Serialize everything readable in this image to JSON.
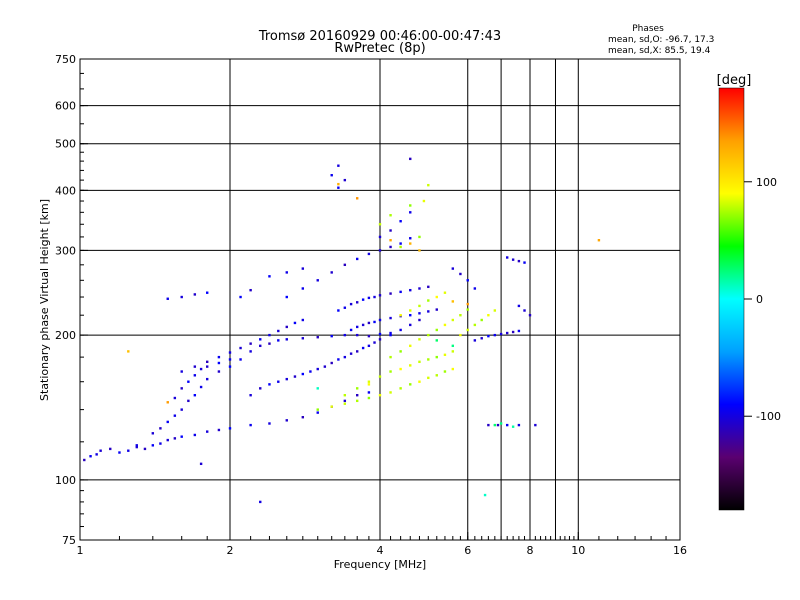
{
  "chart_data": {
    "type": "scatter",
    "title": "Tromsø 20160929 00:46:00-00:47:43",
    "subtitle": "RwPretec (8p)",
    "xlabel": "Frequency [MHz]",
    "ylabel": "Stationary phase Virtual Height [km]",
    "x_scale": "log",
    "y_scale": "log",
    "xlim": [
      1,
      16
    ],
    "ylim": [
      75,
      750
    ],
    "x_ticks": [
      1,
      2,
      4,
      6,
      8,
      10,
      16
    ],
    "y_ticks": [
      75,
      100,
      200,
      300,
      400,
      500,
      600,
      750
    ],
    "grid": true,
    "info": {
      "heading": "Phases",
      "line_o": "mean, sd,O: -96.7, 17.3",
      "line_x": "mean, sd,X:  85.5, 19.4"
    },
    "colorbar": {
      "label": "[deg]",
      "range": [
        -180,
        180
      ],
      "ticks": [
        100,
        0,
        -100
      ],
      "colors": [
        "#000000",
        "#5a0070",
        "#0000ff",
        "#00a0ff",
        "#00ffff",
        "#00ff00",
        "#ffff00",
        "#ffa000",
        "#ff0000"
      ]
    },
    "series": [
      {
        "phase": -100,
        "points": [
          [
            1.02,
            110
          ],
          [
            1.05,
            112
          ],
          [
            1.08,
            113
          ],
          [
            1.1,
            115
          ],
          [
            1.15,
            116
          ],
          [
            1.2,
            114
          ],
          [
            1.25,
            115
          ],
          [
            1.3,
            117
          ],
          [
            1.35,
            116
          ],
          [
            1.4,
            118
          ],
          [
            1.45,
            119
          ],
          [
            1.5,
            121
          ],
          [
            1.55,
            122
          ],
          [
            1.6,
            123
          ],
          [
            1.7,
            124
          ],
          [
            1.8,
            126
          ],
          [
            1.9,
            127
          ],
          [
            2.0,
            128
          ],
          [
            2.2,
            130
          ],
          [
            2.4,
            131
          ],
          [
            2.6,
            133
          ],
          [
            2.8,
            135
          ],
          [
            3.0,
            138
          ],
          [
            3.2,
            142
          ],
          [
            3.4,
            146
          ],
          [
            3.6,
            150
          ],
          [
            3.8,
            152
          ],
          [
            1.3,
            118
          ],
          [
            1.4,
            125
          ],
          [
            1.45,
            128
          ],
          [
            1.5,
            132
          ],
          [
            1.55,
            136
          ],
          [
            1.6,
            140
          ],
          [
            1.65,
            146
          ],
          [
            1.7,
            150
          ],
          [
            1.75,
            156
          ],
          [
            1.8,
            162
          ],
          [
            1.9,
            168
          ],
          [
            2.0,
            172
          ],
          [
            2.1,
            178
          ],
          [
            2.2,
            185
          ],
          [
            2.3,
            190
          ],
          [
            2.4,
            192
          ],
          [
            2.5,
            195
          ],
          [
            2.6,
            196
          ],
          [
            2.8,
            197
          ],
          [
            3.0,
            198
          ],
          [
            3.2,
            199
          ],
          [
            3.4,
            200
          ],
          [
            3.6,
            200
          ],
          [
            3.8,
            199
          ],
          [
            4.0,
            201
          ],
          [
            4.2,
            202
          ],
          [
            1.55,
            148
          ],
          [
            1.6,
            155
          ],
          [
            1.65,
            160
          ],
          [
            1.7,
            165
          ],
          [
            1.75,
            170
          ],
          [
            1.8,
            172
          ],
          [
            1.9,
            175
          ],
          [
            2.0,
            178
          ],
          [
            1.6,
            168
          ],
          [
            1.7,
            172
          ],
          [
            1.8,
            176
          ],
          [
            1.9,
            180
          ],
          [
            2.0,
            184
          ],
          [
            2.1,
            188
          ],
          [
            2.2,
            192
          ],
          [
            2.3,
            196
          ],
          [
            2.4,
            200
          ],
          [
            2.5,
            204
          ],
          [
            2.6,
            208
          ],
          [
            2.7,
            212
          ],
          [
            2.8,
            215
          ],
          [
            2.2,
            150
          ],
          [
            2.3,
            155
          ],
          [
            2.4,
            158
          ],
          [
            2.5,
            160
          ],
          [
            2.6,
            162
          ],
          [
            2.7,
            164
          ],
          [
            2.8,
            166
          ],
          [
            2.9,
            168
          ],
          [
            3.0,
            170
          ],
          [
            3.1,
            172
          ],
          [
            3.2,
            175
          ],
          [
            3.3,
            178
          ],
          [
            3.4,
            180
          ],
          [
            3.5,
            183
          ],
          [
            3.6,
            185
          ],
          [
            3.7,
            188
          ],
          [
            3.8,
            190
          ],
          [
            3.9,
            193
          ],
          [
            4.0,
            196
          ],
          [
            4.2,
            200
          ],
          [
            4.4,
            205
          ],
          [
            4.6,
            210
          ],
          [
            4.8,
            215
          ],
          [
            3.3,
            225
          ],
          [
            3.4,
            228
          ],
          [
            3.5,
            232
          ],
          [
            3.6,
            234
          ],
          [
            3.7,
            237
          ],
          [
            3.8,
            239
          ],
          [
            3.9,
            240
          ],
          [
            4.0,
            242
          ],
          [
            4.2,
            244
          ],
          [
            4.4,
            246
          ],
          [
            4.6,
            248
          ],
          [
            4.8,
            250
          ],
          [
            5.0,
            252
          ],
          [
            3.5,
            205
          ],
          [
            3.6,
            208
          ],
          [
            3.7,
            210
          ],
          [
            3.8,
            212
          ],
          [
            3.9,
            213
          ],
          [
            4.0,
            215
          ],
          [
            4.2,
            217
          ],
          [
            4.4,
            219
          ],
          [
            4.6,
            220
          ],
          [
            4.8,
            222
          ],
          [
            5.0,
            224
          ],
          [
            5.2,
            226
          ],
          [
            2.6,
            240
          ],
          [
            2.8,
            250
          ],
          [
            3.0,
            260
          ],
          [
            3.2,
            270
          ],
          [
            3.4,
            280
          ],
          [
            3.6,
            288
          ],
          [
            3.8,
            295
          ],
          [
            4.0,
            300
          ],
          [
            4.2,
            305
          ],
          [
            4.4,
            310
          ],
          [
            4.6,
            318
          ],
          [
            4.0,
            320
          ],
          [
            4.2,
            330
          ],
          [
            4.4,
            345
          ],
          [
            4.6,
            360
          ],
          [
            5.6,
            275
          ],
          [
            5.8,
            268
          ],
          [
            6.0,
            260
          ],
          [
            6.2,
            250
          ],
          [
            6.2,
            195
          ],
          [
            6.4,
            197
          ],
          [
            6.6,
            199
          ],
          [
            6.8,
            200
          ],
          [
            7.0,
            201
          ],
          [
            7.2,
            202
          ],
          [
            7.4,
            203
          ],
          [
            7.6,
            204
          ],
          [
            7.2,
            290
          ],
          [
            7.4,
            287
          ],
          [
            7.6,
            285
          ],
          [
            7.8,
            283
          ],
          [
            7.6,
            230
          ],
          [
            7.8,
            225
          ],
          [
            8.0,
            220
          ],
          [
            2.4,
            265
          ],
          [
            2.6,
            270
          ],
          [
            2.8,
            275
          ],
          [
            2.2,
            248
          ],
          [
            2.1,
            240
          ],
          [
            1.5,
            238
          ],
          [
            1.6,
            240
          ],
          [
            1.7,
            243
          ],
          [
            1.8,
            245
          ],
          [
            3.2,
            430
          ],
          [
            3.3,
            450
          ],
          [
            3.4,
            420
          ],
          [
            4.6,
            465
          ],
          [
            3.3,
            405
          ],
          [
            2.3,
            90
          ],
          [
            1.75,
            108
          ],
          [
            6.9,
            130
          ],
          [
            7.2,
            130
          ],
          [
            7.6,
            130
          ],
          [
            8.2,
            130
          ],
          [
            6.6,
            130
          ]
        ]
      },
      {
        "phase": 80,
        "points": [
          [
            3.0,
            140
          ],
          [
            3.2,
            142
          ],
          [
            3.4,
            144
          ],
          [
            3.6,
            146
          ],
          [
            3.8,
            148
          ],
          [
            4.0,
            150
          ],
          [
            4.2,
            152
          ],
          [
            4.4,
            155
          ],
          [
            4.6,
            158
          ],
          [
            4.8,
            160
          ],
          [
            5.0,
            163
          ],
          [
            5.2,
            165
          ],
          [
            5.4,
            168
          ],
          [
            5.6,
            170
          ],
          [
            3.8,
            160
          ],
          [
            4.0,
            164
          ],
          [
            4.2,
            168
          ],
          [
            4.4,
            170
          ],
          [
            4.6,
            173
          ],
          [
            4.8,
            176
          ],
          [
            5.0,
            178
          ],
          [
            5.2,
            180
          ],
          [
            5.4,
            182
          ],
          [
            5.6,
            185
          ],
          [
            4.2,
            180
          ],
          [
            4.4,
            185
          ],
          [
            4.6,
            190
          ],
          [
            4.8,
            196
          ],
          [
            5.0,
            200
          ],
          [
            5.2,
            205
          ],
          [
            5.4,
            210
          ],
          [
            5.6,
            215
          ],
          [
            5.8,
            220
          ],
          [
            6.0,
            226
          ],
          [
            4.4,
            220
          ],
          [
            4.6,
            225
          ],
          [
            4.8,
            230
          ],
          [
            5.0,
            236
          ],
          [
            5.2,
            240
          ],
          [
            5.4,
            245
          ],
          [
            4.0,
            340
          ],
          [
            4.2,
            355
          ],
          [
            4.6,
            372
          ],
          [
            4.9,
            380
          ],
          [
            5.0,
            410
          ],
          [
            4.4,
            305
          ],
          [
            4.8,
            320
          ],
          [
            5.8,
            200
          ],
          [
            6.0,
            205
          ],
          [
            6.2,
            210
          ],
          [
            6.4,
            215
          ],
          [
            6.6,
            220
          ],
          [
            6.8,
            225
          ],
          [
            3.4,
            150
          ],
          [
            3.6,
            155
          ],
          [
            3.8,
            158
          ]
        ]
      },
      {
        "phase": 130,
        "points": [
          [
            1.25,
            185
          ],
          [
            1.5,
            145
          ],
          [
            4.2,
            315
          ],
          [
            4.6,
            310
          ],
          [
            5.6,
            235
          ],
          [
            6.0,
            232
          ],
          [
            11.0,
            315
          ],
          [
            3.3,
            412
          ],
          [
            4.8,
            300
          ],
          [
            3.6,
            385
          ]
        ]
      },
      {
        "phase": 20,
        "points": [
          [
            6.5,
            93
          ],
          [
            6.8,
            130
          ],
          [
            7.0,
            131
          ],
          [
            7.4,
            129
          ],
          [
            3.0,
            155
          ],
          [
            5.2,
            195
          ],
          [
            5.6,
            190
          ]
        ]
      }
    ]
  }
}
